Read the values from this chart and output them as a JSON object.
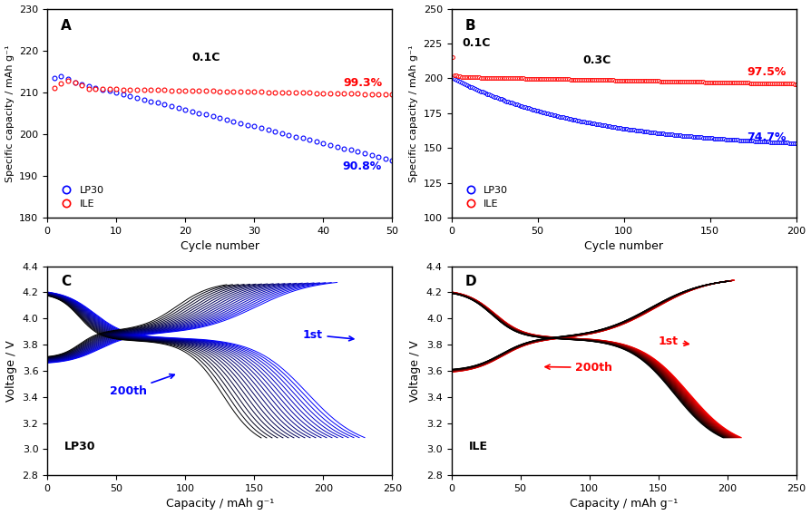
{
  "panel_A": {
    "label": "A",
    "xlim": [
      0,
      50
    ],
    "ylim": [
      180,
      230
    ],
    "xticks": [
      0,
      10,
      20,
      30,
      40,
      50
    ],
    "yticks": [
      180,
      190,
      200,
      210,
      220,
      230
    ],
    "xlabel": "Cycle number",
    "ylabel": "Specific capacity / mAh g⁻¹",
    "annotation": "0.1C",
    "lp30_start": 213.5,
    "lp30_end": 193.8,
    "ile_start": 211.0,
    "ile_end": 209.5,
    "n_cycles": 50,
    "pct_lp30": "90.8%",
    "pct_ile": "99.3%",
    "color_lp30": "#0000FF",
    "color_ile": "#FF0000"
  },
  "panel_B": {
    "label": "B",
    "xlim": [
      0,
      200
    ],
    "ylim": [
      100,
      250
    ],
    "xticks": [
      0,
      50,
      100,
      150,
      200
    ],
    "yticks": [
      100,
      125,
      150,
      175,
      200,
      225,
      250
    ],
    "xlabel": "Cycle number",
    "ylabel": "Specific capacity / mAh g⁻¹",
    "annotation_01C": "0.1C",
    "annotation_03C": "0.3C",
    "lp30_start": 200.0,
    "lp30_end": 149.4,
    "ile_start_01": 215.0,
    "ile_start_main": 201.0,
    "ile_end": 196.0,
    "n_cycles": 200,
    "pct_lp30": "74.7%",
    "pct_ile": "97.5%",
    "color_lp30": "#0000FF",
    "color_ile": "#FF0000"
  },
  "panel_C": {
    "label": "C",
    "xlim": [
      0,
      250
    ],
    "ylim": [
      2.8,
      4.4
    ],
    "xticks": [
      0,
      50,
      100,
      150,
      200,
      250
    ],
    "yticks": [
      2.8,
      3.0,
      3.2,
      3.4,
      3.6,
      3.8,
      4.0,
      4.2,
      4.4
    ],
    "xlabel": "Capacity / mAh g⁻¹",
    "ylabel": "Voltage / V",
    "annotation": "LP30",
    "n_curves": 20,
    "color_first": "#0000FF",
    "color_last": "#000000"
  },
  "panel_D": {
    "label": "D",
    "xlim": [
      0,
      250
    ],
    "ylim": [
      2.8,
      4.4
    ],
    "xticks": [
      0,
      50,
      100,
      150,
      200,
      250
    ],
    "yticks": [
      2.8,
      3.0,
      3.2,
      3.4,
      3.6,
      3.8,
      4.0,
      4.2,
      4.4
    ],
    "xlabel": "Capacity / mAh g⁻¹",
    "ylabel": "Voltage / V",
    "annotation": "ILE",
    "n_curves": 20,
    "color_first": "#FF0000",
    "color_last": "#000000"
  }
}
